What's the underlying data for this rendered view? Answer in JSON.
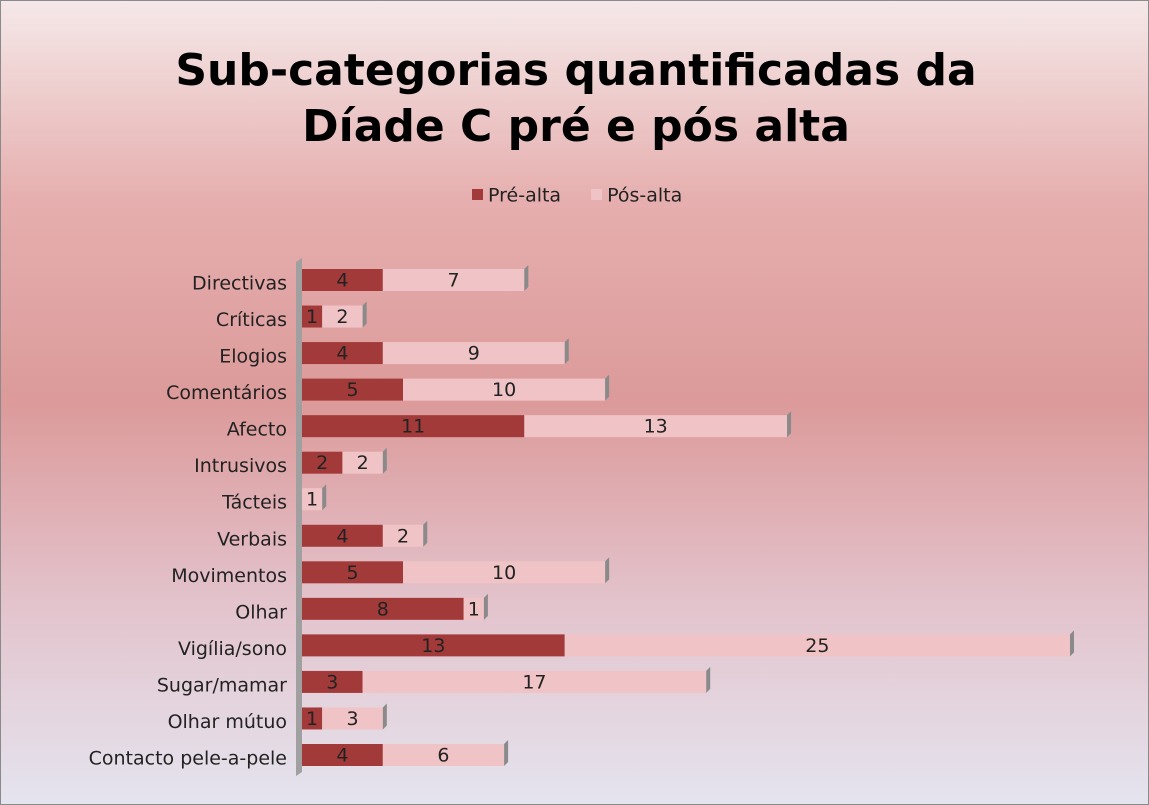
{
  "chart_data": {
    "type": "stacked-bar-horizontal",
    "title": "Sub-categorias quantificadas da Díade C pré e pós alta",
    "categories": [
      "Directivas",
      "Críticas",
      "Elogios",
      "Comentários",
      "Afecto",
      "Intrusivos",
      "Tácteis",
      "Verbais",
      "Movimentos",
      "Olhar",
      "Vigília/sono",
      "Sugar/mamar",
      "Olhar mútuo",
      "Contacto pele-a-pele"
    ],
    "series": [
      {
        "name": "Pré-alta",
        "color": "#a33a3a",
        "values": [
          4,
          1,
          4,
          5,
          11,
          2,
          null,
          4,
          5,
          8,
          13,
          3,
          1,
          4
        ]
      },
      {
        "name": "Pós-alta",
        "color": "#f0c4c6",
        "values": [
          7,
          2,
          9,
          10,
          13,
          2,
          1,
          2,
          10,
          1,
          25,
          17,
          3,
          6
        ]
      }
    ],
    "legend": "top"
  }
}
